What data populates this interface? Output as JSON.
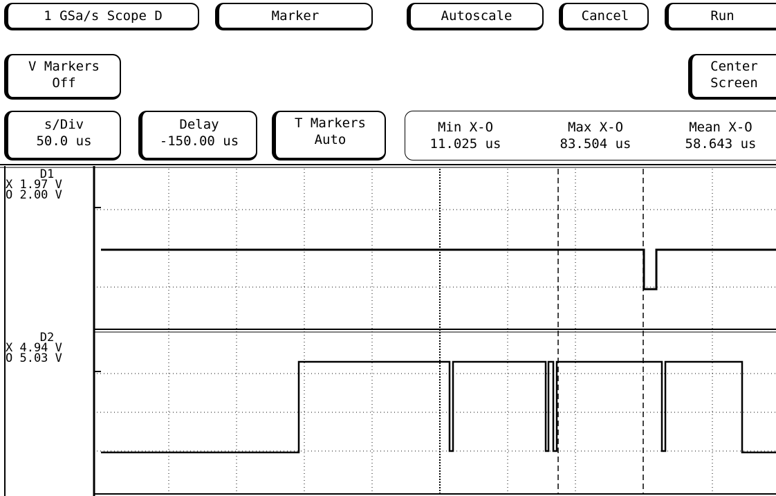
{
  "toolbar": {
    "scope_button": "1 GSa/s Scope D",
    "marker_button": "Marker",
    "autoscale_button": "Autoscale",
    "cancel_button": "Cancel",
    "run_button": "Run"
  },
  "row2": {
    "v_markers": {
      "title": "V Markers",
      "value": "Off"
    },
    "center_screen": {
      "line1": "Center",
      "line2": "Screen"
    }
  },
  "row3": {
    "sdiv": {
      "title": "s/Div",
      "value": "50.0 us"
    },
    "delay": {
      "title": "Delay",
      "value": "-150.00 us"
    },
    "t_markers": {
      "title": "T Markers",
      "value": "Auto"
    },
    "stats": [
      {
        "label": "Min X-O",
        "value": "11.025 us"
      },
      {
        "label": "Max X-O",
        "value": "83.504 us"
      },
      {
        "label": "Mean X-O",
        "value": "58.643 us"
      }
    ]
  },
  "channels": [
    {
      "name": "D1",
      "x_line": "X 1.97 V",
      "o_line": "O 2.00 V"
    },
    {
      "name": "D2",
      "x_line": "X 4.94 V",
      "o_line": "O 5.03 V"
    }
  ]
}
